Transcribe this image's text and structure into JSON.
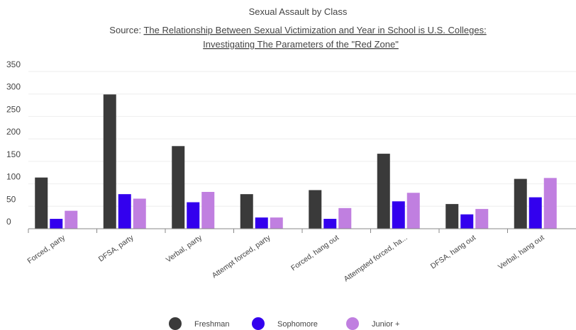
{
  "chart_data": {
    "type": "bar",
    "title": "Sexual Assault by Class",
    "source_prefix": "Source: ",
    "source_line1": "The Relationship Between Sexual Victimization and Year in School is U.S. Colleges:",
    "source_line2": "Investigating The Parameters of the \"Red Zone\"",
    "categories": [
      "Forced, party",
      "DFSA, party",
      "Verbal, party",
      "Attempt forced, party",
      "Forced, hang out",
      "Attempted forced, ha...",
      "DFSA, hang out",
      "Verbal, hang out"
    ],
    "series": [
      {
        "name": "Freshman",
        "color": "#3a3a3a",
        "values": [
          114,
          299,
          184,
          77,
          86,
          167,
          55,
          111
        ]
      },
      {
        "name": "Sophomore",
        "color": "#3300ee",
        "values": [
          22,
          77,
          59,
          25,
          22,
          61,
          32,
          70
        ]
      },
      {
        "name": "Junior +",
        "color": "#c07fe0",
        "values": [
          40,
          67,
          82,
          25,
          46,
          80,
          44,
          113
        ]
      }
    ],
    "yticks": [
      "0",
      "50",
      "100",
      "150",
      "200",
      "250",
      "300",
      "350"
    ],
    "ylim": [
      0,
      350
    ],
    "grid": true,
    "legend_position": "bottom"
  }
}
